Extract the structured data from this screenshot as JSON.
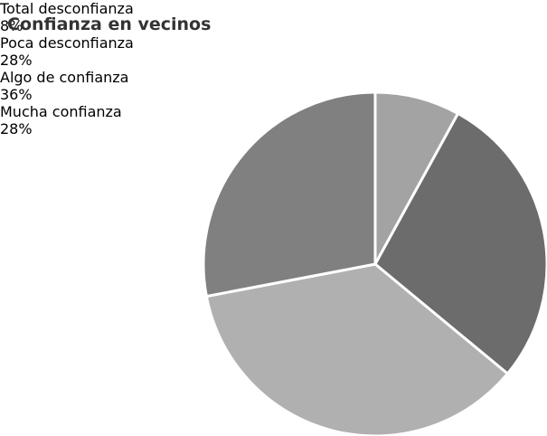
{
  "chart_data": {
    "type": "pie",
    "title": "Confianza en vecinos",
    "categories": [
      "Total desconfianza",
      "Poca desconfianza",
      "Algo de confianza",
      "Mucha confianza"
    ],
    "values": [
      8,
      28,
      36,
      28
    ],
    "value_labels": [
      "8%",
      "28%",
      "36%",
      "28%"
    ],
    "colors": [
      "#a3a3a3",
      "#6c6c6c",
      "#b0b0b0",
      "#808080"
    ]
  }
}
